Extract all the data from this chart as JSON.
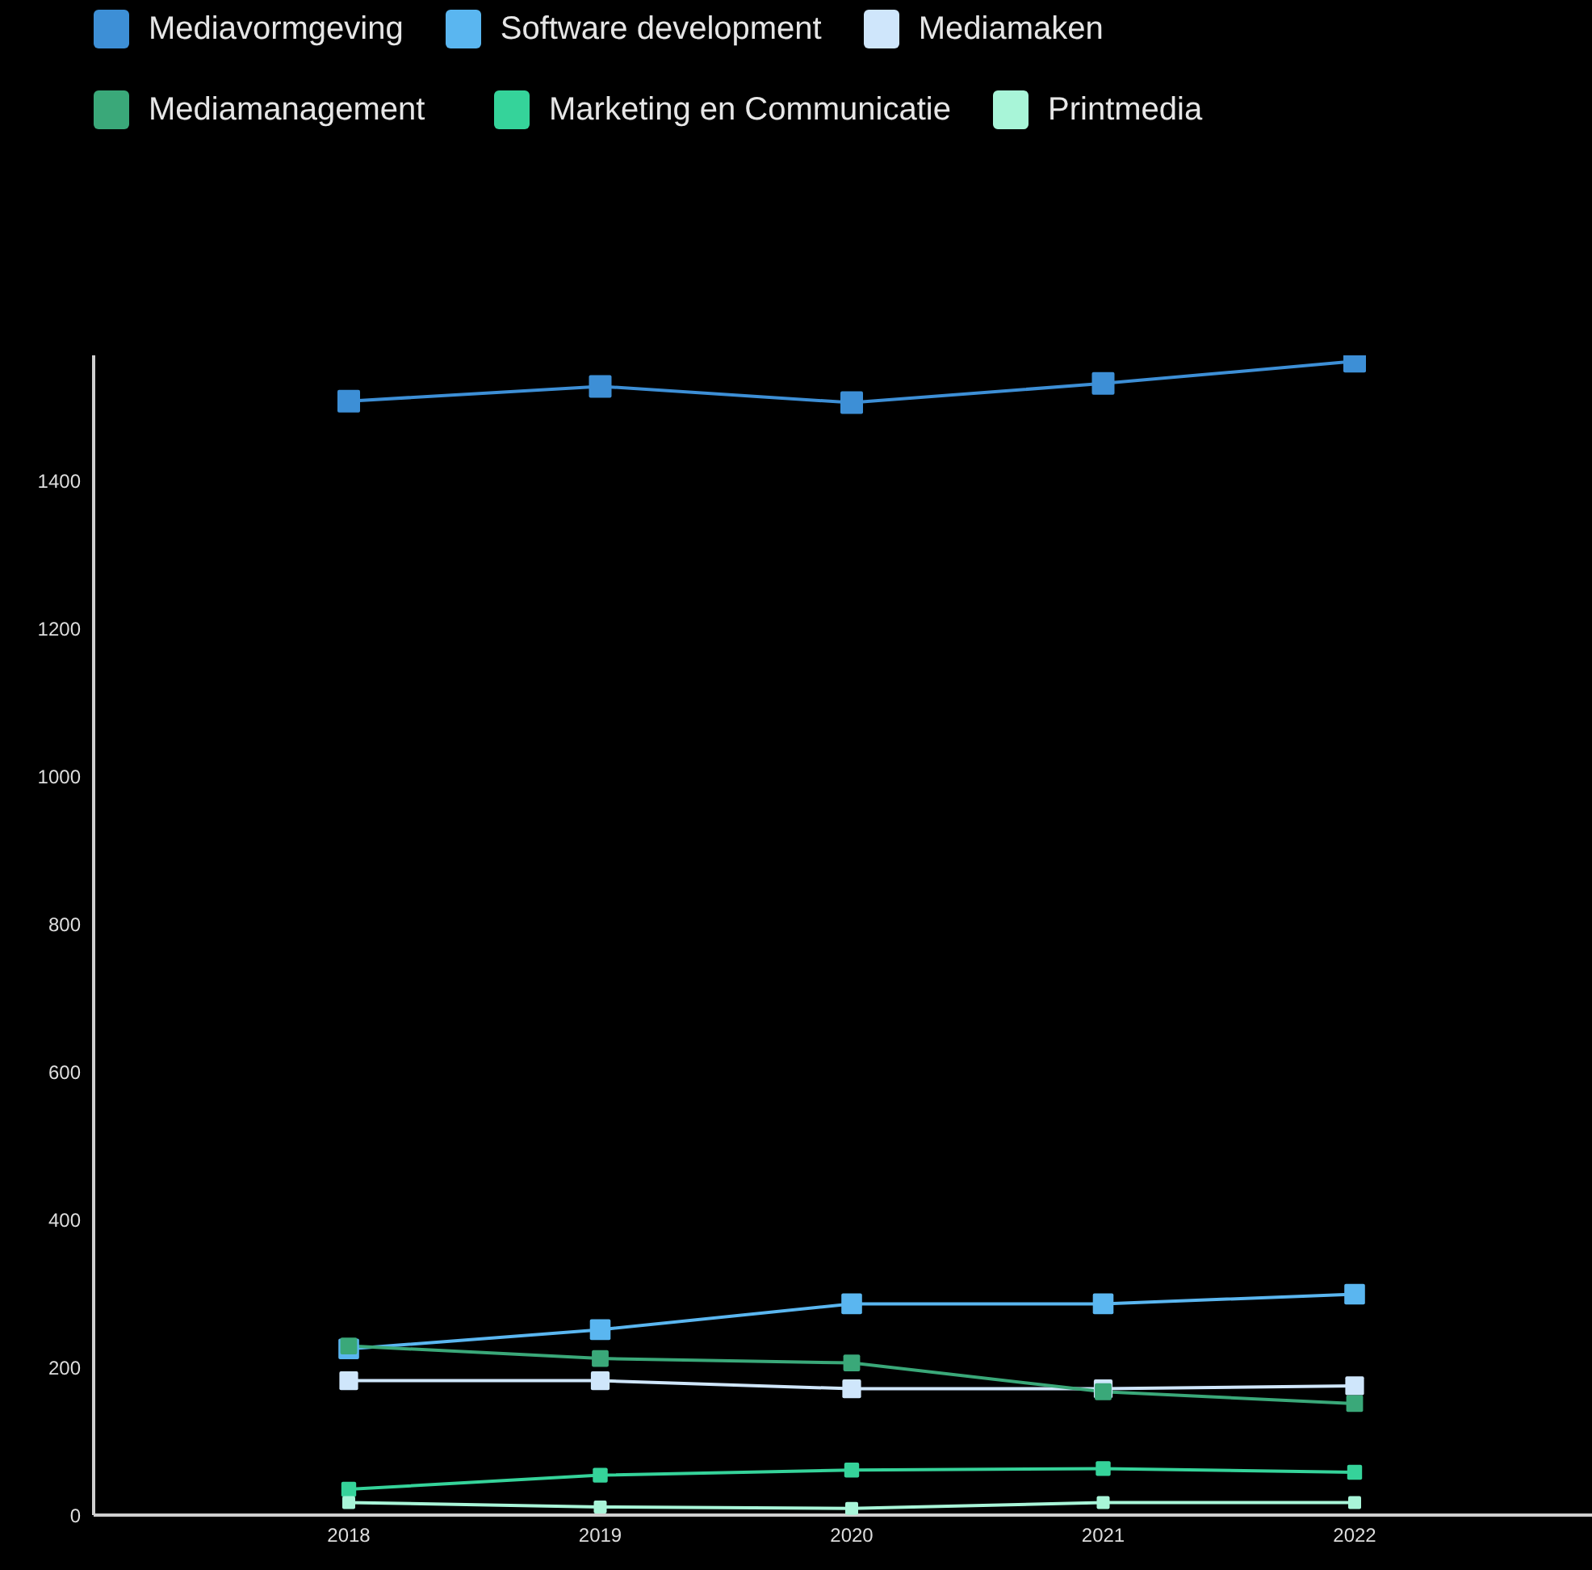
{
  "chart_data": {
    "type": "line",
    "categories": [
      "2018",
      "2019",
      "2020",
      "2021",
      "2022"
    ],
    "series": [
      {
        "name": "Mediavormgeving",
        "color": "#3d8fd6",
        "values": [
          1508,
          1528,
          1506,
          1532,
          1562
        ]
      },
      {
        "name": "Software development",
        "color": "#5ab6f0",
        "values": [
          225,
          251,
          286,
          286,
          299
        ]
      },
      {
        "name": "Mediamaken",
        "color": "#cfe6fb",
        "values": [
          182,
          182,
          171,
          171,
          175
        ]
      },
      {
        "name": "Mediamanagement",
        "color": "#3aa879",
        "values": [
          229,
          212,
          206,
          167,
          151
        ]
      },
      {
        "name": "Marketing en Communicatie",
        "color": "#35d39a",
        "values": [
          35,
          54,
          61,
          63,
          58
        ]
      },
      {
        "name": "Printmedia",
        "color": "#a8f5d8",
        "values": [
          17,
          11,
          9,
          17,
          17
        ]
      }
    ],
    "ylim": [
      0,
      1570
    ],
    "yticks": [
      0,
      200,
      400,
      600,
      800,
      1000,
      1200,
      1400
    ],
    "grid": false,
    "legend": "top left",
    "marker": "square",
    "line_style": "solid"
  }
}
